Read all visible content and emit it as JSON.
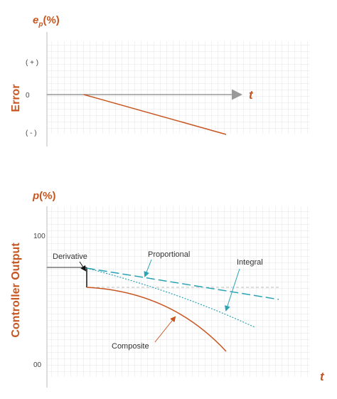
{
  "top_chart": {
    "y_var": "e",
    "y_sub": "p",
    "y_unit": "(%)",
    "axis_title": "Error",
    "ticks": {
      "plus": "( + )",
      "zero": "0",
      "minus": "( - )"
    },
    "x_label": "t"
  },
  "bottom_chart": {
    "y_var": "p",
    "y_unit": "(%)",
    "axis_title": "Controller Output",
    "ticks": {
      "top": "100",
      "bottom": "00"
    },
    "x_label": "t",
    "annotations": {
      "derivative": "Derivative",
      "proportional": "Proportional",
      "integral": "Integral",
      "composite": "Composite"
    }
  },
  "colors": {
    "orange": "#c8551f",
    "teal": "#2aa3b5",
    "grid": "#e6e6e6",
    "axis_arrow": "#999999"
  }
}
